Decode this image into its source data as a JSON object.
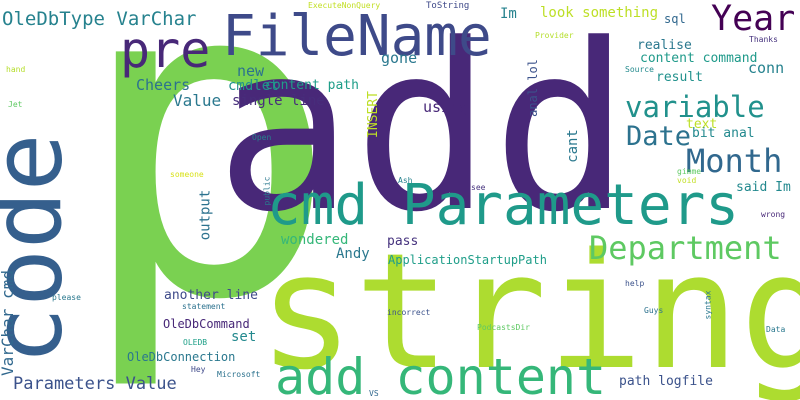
{
  "words": [
    {
      "text": "p",
      "color": "#7ad151",
      "rotate": false
    },
    {
      "text": "add",
      "color": "#482878",
      "rotate": false
    },
    {
      "text": "string",
      "color": "#addc30",
      "rotate": false
    },
    {
      "text": "code",
      "color": "#355f8d",
      "rotate": true
    },
    {
      "text": "cmd Parameters",
      "color": "#1f9a8a",
      "rotate": false
    },
    {
      "text": "add content",
      "color": "#35b779",
      "rotate": false
    },
    {
      "text": "FileName",
      "color": "#3e4a89",
      "rotate": false
    },
    {
      "text": "pre",
      "color": "#482878",
      "rotate": false
    },
    {
      "text": "Department",
      "color": "#5ec962",
      "rotate": false
    },
    {
      "text": "Year",
      "color": "#440154",
      "rotate": false
    },
    {
      "text": "Month",
      "color": "#31688e",
      "rotate": false
    },
    {
      "text": "variable",
      "color": "#21918c",
      "rotate": false
    },
    {
      "text": "Date",
      "color": "#2c728e",
      "rotate": false
    },
    {
      "text": "OleDbType VarChar",
      "color": "#26828e",
      "rotate": false
    },
    {
      "text": "Parameters Value",
      "color": "#3b528b",
      "rotate": false
    },
    {
      "text": "VarChar cmd",
      "color": "#31688e",
      "rotate": true
    },
    {
      "text": "Value",
      "color": "#2a788e",
      "rotate": false
    },
    {
      "text": "Cheers",
      "color": "#2c728e",
      "rotate": false
    },
    {
      "text": "new",
      "color": "#2c728e",
      "rotate": false
    },
    {
      "text": "cmdlet",
      "color": "#21918c",
      "rotate": false
    },
    {
      "text": "content path",
      "color": "#1f9e89",
      "rotate": false
    },
    {
      "text": "single line",
      "color": "#472d7b",
      "rotate": false
    },
    {
      "text": "gone",
      "color": "#2a788e",
      "rotate": false
    },
    {
      "text": "using",
      "color": "#482878",
      "rotate": false
    },
    {
      "text": "INSERT",
      "color": "#bddf26",
      "rotate": true
    },
    {
      "text": "anal lol",
      "color": "#3b528b",
      "rotate": true
    },
    {
      "text": "cant",
      "color": "#2a788e",
      "rotate": true
    },
    {
      "text": "Im",
      "color": "#26828e",
      "rotate": false
    },
    {
      "text": "look something",
      "color": "#bddf26",
      "rotate": false
    },
    {
      "text": "sql",
      "color": "#31688e",
      "rotate": false
    },
    {
      "text": "realise",
      "color": "#2a788e",
      "rotate": false
    },
    {
      "text": "content command",
      "color": "#1f9a8a",
      "rotate": false
    },
    {
      "text": "result",
      "color": "#21918c",
      "rotate": false
    },
    {
      "text": "conn",
      "color": "#26828e",
      "rotate": false
    },
    {
      "text": "text",
      "color": "#bddf26",
      "rotate": false
    },
    {
      "text": "bit anal",
      "color": "#23898e",
      "rotate": false
    },
    {
      "text": "said Im",
      "color": "#23898e",
      "rotate": false
    },
    {
      "text": "output",
      "color": "#2c728e",
      "rotate": true
    },
    {
      "text": "wondered",
      "color": "#35b779",
      "rotate": false
    },
    {
      "text": "pass",
      "color": "#46337e",
      "rotate": false
    },
    {
      "text": "Andy",
      "color": "#2a788e",
      "rotate": false
    },
    {
      "text": "ApplicationStartupPath",
      "color": "#1f9e89",
      "rotate": false
    },
    {
      "text": "another line",
      "color": "#3e4a89",
      "rotate": false
    },
    {
      "text": "OleDbCommand",
      "color": "#482878",
      "rotate": false
    },
    {
      "text": "set",
      "color": "#23898e",
      "rotate": false
    },
    {
      "text": "OleDbConnection",
      "color": "#2a788e",
      "rotate": false
    },
    {
      "text": "path logfile",
      "color": "#3b528b",
      "rotate": false
    },
    {
      "text": "ExecuteNonQuery",
      "color": "#c2df23",
      "rotate": false
    },
    {
      "text": "ToString",
      "color": "#3e4989",
      "rotate": false
    },
    {
      "text": "Provider",
      "color": "#b5de2b",
      "rotate": false
    },
    {
      "text": "Thanks",
      "color": "#46337e",
      "rotate": false
    },
    {
      "text": "Source",
      "color": "#238a8d",
      "rotate": false
    },
    {
      "text": "gimme",
      "color": "#5ec962",
      "rotate": false
    },
    {
      "text": "hand",
      "color": "#b5de2b",
      "rotate": false
    },
    {
      "text": "Jet",
      "color": "#5ec962",
      "rotate": false
    },
    {
      "text": "Open",
      "color": "#26828e",
      "rotate": false
    },
    {
      "text": "someone",
      "color": "#d8e219",
      "rotate": false
    },
    {
      "text": "public",
      "color": "#2a788e",
      "rotate": true
    },
    {
      "text": "Ash",
      "color": "#26828e",
      "rotate": false
    },
    {
      "text": "see",
      "color": "#46337e",
      "rotate": false
    },
    {
      "text": "void",
      "color": "#c2df23",
      "rotate": false
    },
    {
      "text": "wrong",
      "color": "#482878",
      "rotate": false
    },
    {
      "text": "please",
      "color": "#2a788e",
      "rotate": false
    },
    {
      "text": "statement",
      "color": "#2c728e",
      "rotate": false
    },
    {
      "text": "OLEDB",
      "color": "#1fa088",
      "rotate": false
    },
    {
      "text": "Hey",
      "color": "#3e4989",
      "rotate": false
    },
    {
      "text": "Microsoft",
      "color": "#2c728e",
      "rotate": false
    },
    {
      "text": "incorrect",
      "color": "#3b528b",
      "rotate": false
    },
    {
      "text": "help",
      "color": "#3b528b",
      "rotate": false
    },
    {
      "text": "Guys",
      "color": "#2c728e",
      "rotate": false
    },
    {
      "text": "PodcastsDir",
      "color": "#5ec962",
      "rotate": false
    },
    {
      "text": "syntax",
      "color": "#2a788e",
      "rotate": true
    },
    {
      "text": "Data",
      "color": "#2a788e",
      "rotate": false
    },
    {
      "text": "VS",
      "color": "#31688e",
      "rotate": false
    }
  ]
}
